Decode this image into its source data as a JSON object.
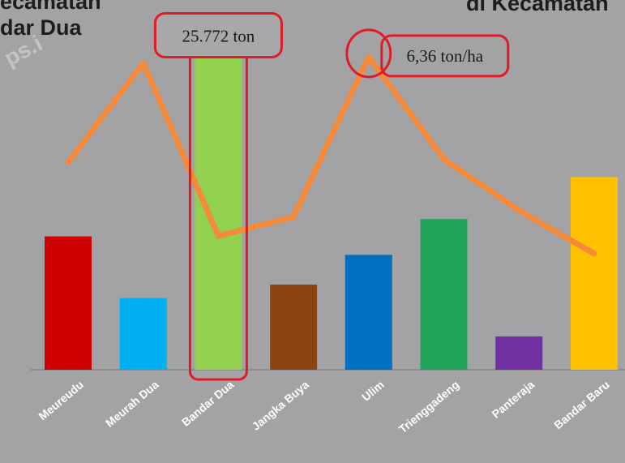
{
  "header": {
    "title_left_line1": "ecamatan",
    "title_left_line2": "dar Dua",
    "title_right": "di Kecamatan",
    "watermark": "ps.i"
  },
  "chart_data": {
    "type": "bar",
    "categories": [
      "Meureudu",
      "Meurah Dua",
      "Bandar Dua",
      "Jangka Buya",
      "Ulim",
      "Trienggadeng",
      "Panteraja",
      "Bandar Baru"
    ],
    "series": [
      {
        "type": "bar",
        "values": [
          10800,
          5800,
          25772,
          6900,
          9300,
          12200,
          2700,
          15600
        ],
        "colors": [
          "#cc0000",
          "#00b0f0",
          "#92d050",
          "#8b4513",
          "#0070c0",
          "#22a55a",
          "#7030a0",
          "#ffc000"
        ]
      },
      {
        "type": "line",
        "values": [
          5.7,
          6.32,
          5.24,
          5.36,
          6.36,
          5.72,
          5.4,
          5.13
        ],
        "color": "#f58a3a"
      }
    ],
    "annotations": [
      {
        "text": "25.772 ton",
        "category": "Bandar Dua",
        "series": 0
      },
      {
        "text": "6,36 ton/ha",
        "category": "Ulim",
        "series": 1
      }
    ],
    "highlight_color": "#e01b24",
    "bar_ylim": [
      0,
      26000
    ],
    "line_ylim": [
      4.4,
      6.4
    ],
    "grid": false,
    "legend": "none"
  }
}
